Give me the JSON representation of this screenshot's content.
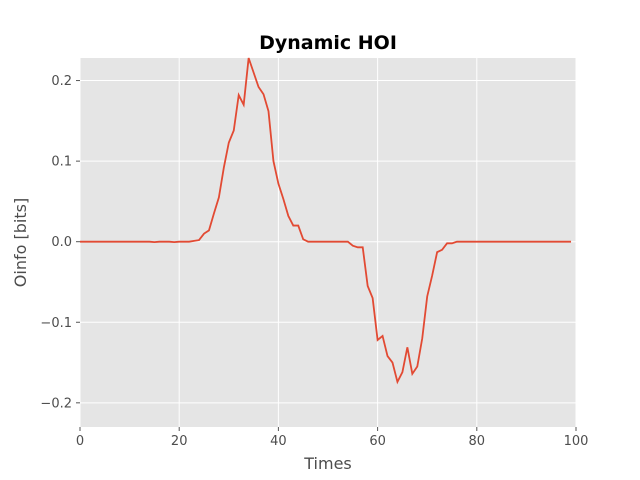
{
  "chart_data": {
    "type": "line",
    "title": "Dynamic HOI",
    "xlabel": "Times",
    "ylabel": "Oinfo [bits]",
    "xlim": [
      0,
      100
    ],
    "ylim": [
      -0.23,
      0.228
    ],
    "grid": true,
    "background_color": "#e5e5e5",
    "grid_color": "#ffffff",
    "line_color": "#e24a33",
    "x_ticks": [
      0,
      20,
      40,
      60,
      80,
      100
    ],
    "x_tick_labels": [
      "0",
      "20",
      "40",
      "60",
      "80",
      "100"
    ],
    "y_ticks": [
      -0.2,
      -0.1,
      0.0,
      0.1,
      0.2
    ],
    "y_tick_labels": [
      "−0.2",
      "−0.1",
      "0.0",
      "0.1",
      "0.2"
    ],
    "series": [
      {
        "x": [
          0,
          1,
          2,
          3,
          4,
          5,
          6,
          7,
          8,
          9,
          10,
          11,
          12,
          13,
          14,
          15,
          16,
          17,
          18,
          19,
          20,
          21,
          22,
          23,
          24,
          25,
          26,
          27,
          28,
          29,
          30,
          31,
          32,
          33,
          34,
          35,
          36,
          37,
          38,
          39,
          40,
          41,
          42,
          43,
          44,
          45,
          46,
          47,
          48,
          49,
          50,
          51,
          52,
          53,
          54,
          55,
          56,
          57,
          58,
          59,
          60,
          61,
          62,
          63,
          64,
          65,
          66,
          67,
          68,
          69,
          70,
          71,
          72,
          73,
          74,
          75,
          76,
          77,
          78,
          79,
          80,
          81,
          82,
          83,
          84,
          85,
          86,
          87,
          88,
          89,
          90,
          91,
          92,
          93,
          94,
          95,
          96,
          97,
          98,
          99
        ],
        "y": [
          0,
          0,
          0,
          0,
          0,
          0,
          0,
          0,
          0,
          0,
          0,
          0,
          0,
          0,
          0,
          -0.0005,
          0,
          0,
          0,
          -0.0005,
          0,
          0,
          0,
          0.001,
          0.002,
          0.01,
          0.014,
          0.035,
          0.055,
          0.092,
          0.123,
          0.138,
          0.182,
          0.17,
          0.228,
          0.21,
          0.192,
          0.183,
          0.162,
          0.1,
          0.072,
          0.053,
          0.032,
          0.02,
          0.02,
          0.003,
          0,
          0,
          0,
          0,
          0,
          0,
          0,
          0,
          0,
          -0.005,
          -0.007,
          -0.007,
          -0.055,
          -0.07,
          -0.122,
          -0.117,
          -0.142,
          -0.15,
          -0.174,
          -0.162,
          -0.131,
          -0.164,
          -0.155,
          -0.12,
          -0.068,
          -0.042,
          -0.013,
          -0.01,
          -0.002,
          -0.002,
          0,
          0,
          0,
          0,
          0,
          0,
          0,
          0,
          0,
          0,
          0,
          0,
          0,
          0,
          0,
          0,
          0,
          0,
          0,
          0,
          0,
          0,
          0,
          0
        ]
      }
    ]
  }
}
